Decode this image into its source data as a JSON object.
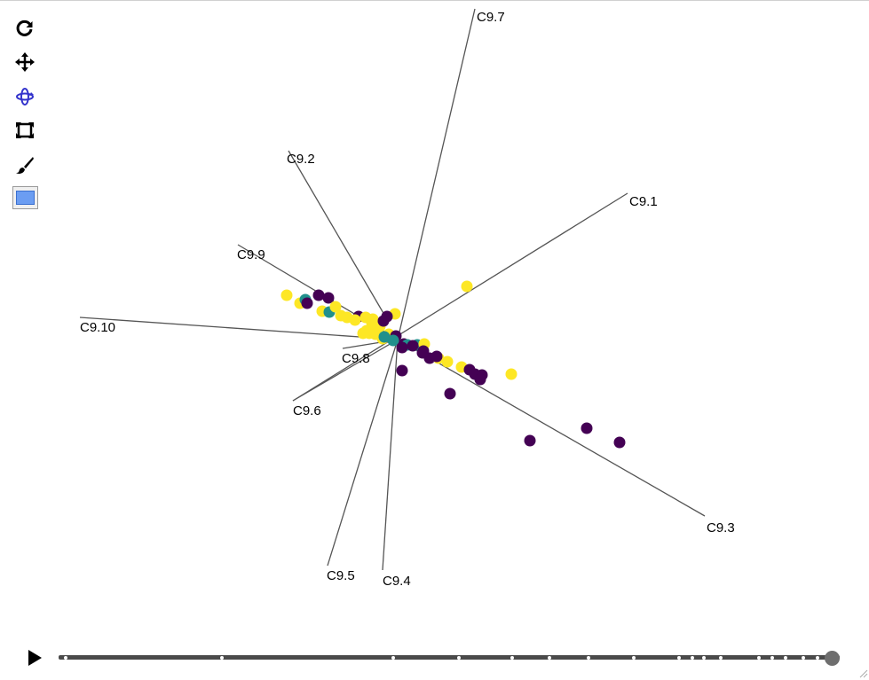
{
  "toolbar": {
    "tools": [
      {
        "name": "reset-icon"
      },
      {
        "name": "pan-icon"
      },
      {
        "name": "rotate-icon",
        "active": true,
        "color": "#3333cc"
      },
      {
        "name": "zoom-box-icon"
      },
      {
        "name": "brush-icon"
      },
      {
        "name": "selection-color-icon",
        "color": "#6b9df2"
      }
    ]
  },
  "chart_data": {
    "type": "scatter",
    "projection": "3d-rotated-axes",
    "axes": [
      {
        "label": "C9.1"
      },
      {
        "label": "C9.2"
      },
      {
        "label": "C9.3"
      },
      {
        "label": "C9.4"
      },
      {
        "label": "C9.5"
      },
      {
        "label": "C9.6"
      },
      {
        "label": "C9.7"
      },
      {
        "label": "C9.8"
      },
      {
        "label": "C9.9"
      },
      {
        "label": "C9.10"
      }
    ],
    "groups": [
      {
        "color": "#440154"
      },
      {
        "color": "#21908c"
      },
      {
        "color": "#fde725"
      }
    ],
    "point_count": 70
  },
  "player": {
    "playing": false,
    "position": 1.0,
    "frame_count": 26
  }
}
